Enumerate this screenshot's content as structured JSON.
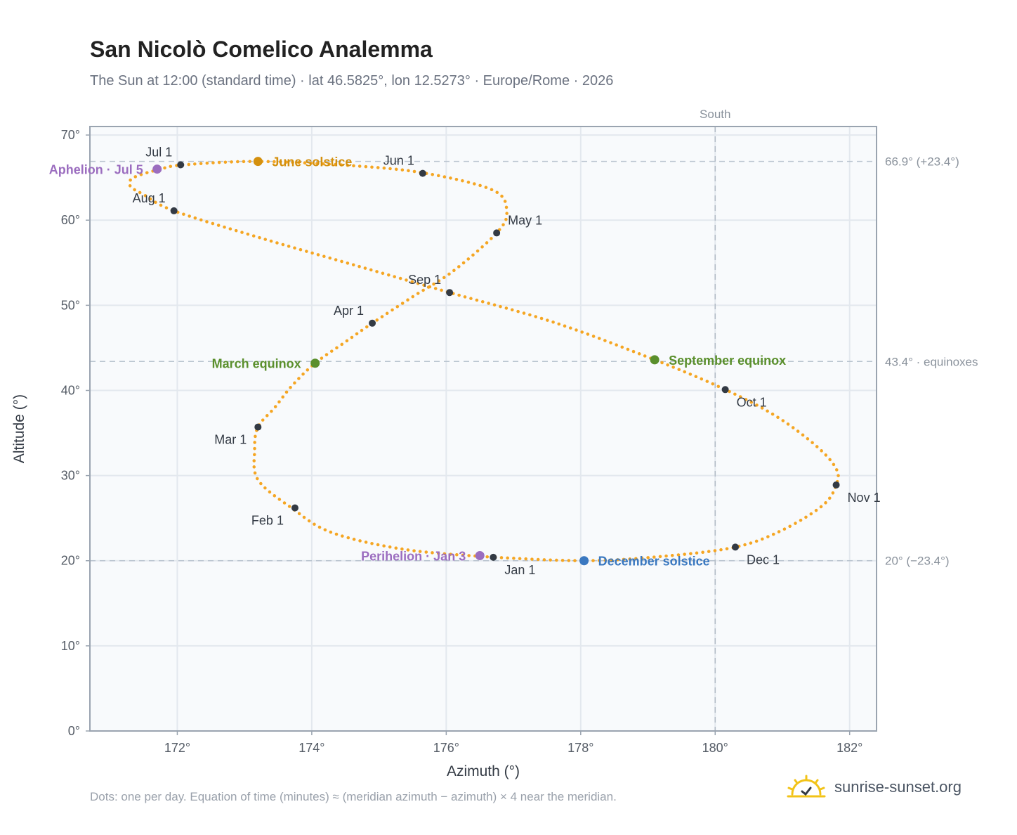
{
  "header": {
    "title": "San Nicolò Comelico Analemma",
    "subtitle": "The Sun at 12:00 (standard time) · lat 46.5825°, lon 12.5273° · Europe/Rome · 2026"
  },
  "footer": {
    "note": "Dots: one per day. Equation of time (minutes) ≈ (meridian azimuth − azimuth) × 4 near the meridian.",
    "brand": "sunrise-sunset.org",
    "brand_icon": "sun-logo-icon"
  },
  "colors": {
    "path": "#f5a623",
    "month": "#333a44",
    "solstice_june": "#d4900e",
    "solstice_dec": "#3a78c0",
    "equinox": "#5a8f2c",
    "apsis": "#9b6dbf",
    "grid": "#e3e8ee",
    "plot_bg": "#f8fafc",
    "axis": "#9aa4b0",
    "ref_line": "#b9c4cf"
  },
  "chart_data": {
    "type": "scatter",
    "xlabel": "Azimuth (°)",
    "ylabel": "Altitude (°)",
    "xlim": [
      170.7,
      182.4
    ],
    "ylim": [
      0,
      71
    ],
    "x_ticks": [
      172,
      174,
      176,
      178,
      180,
      182
    ],
    "x_tick_labels": [
      "172°",
      "174°",
      "176°",
      "178°",
      "180°",
      "182°"
    ],
    "y_ticks": [
      0,
      10,
      20,
      30,
      40,
      50,
      60,
      70
    ],
    "y_tick_labels": [
      "0°",
      "10°",
      "20°",
      "30°",
      "40°",
      "50°",
      "60°",
      "70°"
    ],
    "grid": true,
    "south_line": {
      "x": 180,
      "label": "South"
    },
    "reference_lines": [
      {
        "y": 66.9,
        "label": "66.9° (+23.4°)"
      },
      {
        "y": 43.4,
        "label": "43.4° · equinoxes"
      },
      {
        "y": 20.0,
        "label": "20° (−23.4°)"
      }
    ],
    "path_points": [
      [
        176.7,
        20.4
      ],
      [
        175.4,
        21.3
      ],
      [
        174.3,
        23.3
      ],
      [
        173.7,
        26.2
      ],
      [
        173.2,
        29.5
      ],
      [
        173.15,
        33.0
      ],
      [
        173.2,
        35.7
      ],
      [
        173.45,
        38.0
      ],
      [
        173.7,
        40.5
      ],
      [
        174.05,
        43.2
      ],
      [
        174.5,
        45.7
      ],
      [
        174.9,
        47.9
      ],
      [
        175.5,
        51.0
      ],
      [
        176.1,
        54.0
      ],
      [
        176.75,
        58.5
      ],
      [
        176.9,
        61.0
      ],
      [
        176.7,
        63.5
      ],
      [
        175.7,
        65.5
      ],
      [
        174.6,
        66.4
      ],
      [
        173.2,
        66.9
      ],
      [
        172.1,
        66.5
      ],
      [
        171.75,
        66.0
      ],
      [
        171.35,
        65.0
      ],
      [
        171.3,
        64.0
      ],
      [
        171.5,
        63.0
      ],
      [
        171.95,
        61.1
      ],
      [
        173.2,
        58.0
      ],
      [
        174.6,
        54.8
      ],
      [
        176.05,
        51.5
      ],
      [
        177.6,
        48.0
      ],
      [
        179.1,
        43.6
      ],
      [
        180.15,
        40.1
      ],
      [
        180.9,
        37.0
      ],
      [
        181.5,
        33.5
      ],
      [
        181.8,
        30.8
      ],
      [
        181.8,
        28.9
      ],
      [
        181.6,
        26.5
      ],
      [
        181.0,
        23.6
      ],
      [
        180.3,
        21.6
      ],
      [
        179.2,
        20.5
      ],
      [
        178.05,
        20.0
      ],
      [
        176.7,
        20.4
      ]
    ],
    "month_markers": [
      {
        "label": "Jan 1",
        "x": 176.7,
        "y": 20.4,
        "anchor": "below-right"
      },
      {
        "label": "Feb 1",
        "x": 173.75,
        "y": 26.2,
        "anchor": "below-left"
      },
      {
        "label": "Mar 1",
        "x": 173.2,
        "y": 35.7,
        "anchor": "below-left"
      },
      {
        "label": "Apr 1",
        "x": 174.9,
        "y": 47.9,
        "anchor": "above-left"
      },
      {
        "label": "May 1",
        "x": 176.75,
        "y": 58.5,
        "anchor": "above-right"
      },
      {
        "label": "Jun 1",
        "x": 175.65,
        "y": 65.5,
        "anchor": "above-left"
      },
      {
        "label": "Jul 1",
        "x": 172.05,
        "y": 66.5,
        "anchor": "above-left"
      },
      {
        "label": "Aug 1",
        "x": 171.95,
        "y": 61.1,
        "anchor": "above-left"
      },
      {
        "label": "Sep 1",
        "x": 176.05,
        "y": 51.5,
        "anchor": "above-left"
      },
      {
        "label": "Oct 1",
        "x": 180.15,
        "y": 40.1,
        "anchor": "below-right"
      },
      {
        "label": "Nov 1",
        "x": 181.8,
        "y": 28.9,
        "anchor": "below-right"
      },
      {
        "label": "Dec 1",
        "x": 180.3,
        "y": 21.6,
        "anchor": "below-right"
      }
    ],
    "events": [
      {
        "label": "June solstice",
        "x": 173.2,
        "y": 66.9,
        "kind": "solstice_june",
        "side": "right"
      },
      {
        "label": "December solstice",
        "x": 178.05,
        "y": 20.0,
        "kind": "solstice_dec",
        "side": "right"
      },
      {
        "label": "March equinox",
        "x": 174.05,
        "y": 43.2,
        "kind": "equinox",
        "side": "left"
      },
      {
        "label": "September equinox",
        "x": 179.1,
        "y": 43.6,
        "kind": "equinox",
        "side": "right"
      },
      {
        "label": "Aphelion · Jul 5",
        "x": 171.7,
        "y": 66.0,
        "kind": "apsis",
        "side": "left"
      },
      {
        "label": "Perihelion · Jan 3",
        "x": 176.5,
        "y": 20.6,
        "kind": "apsis",
        "side": "left"
      }
    ]
  }
}
